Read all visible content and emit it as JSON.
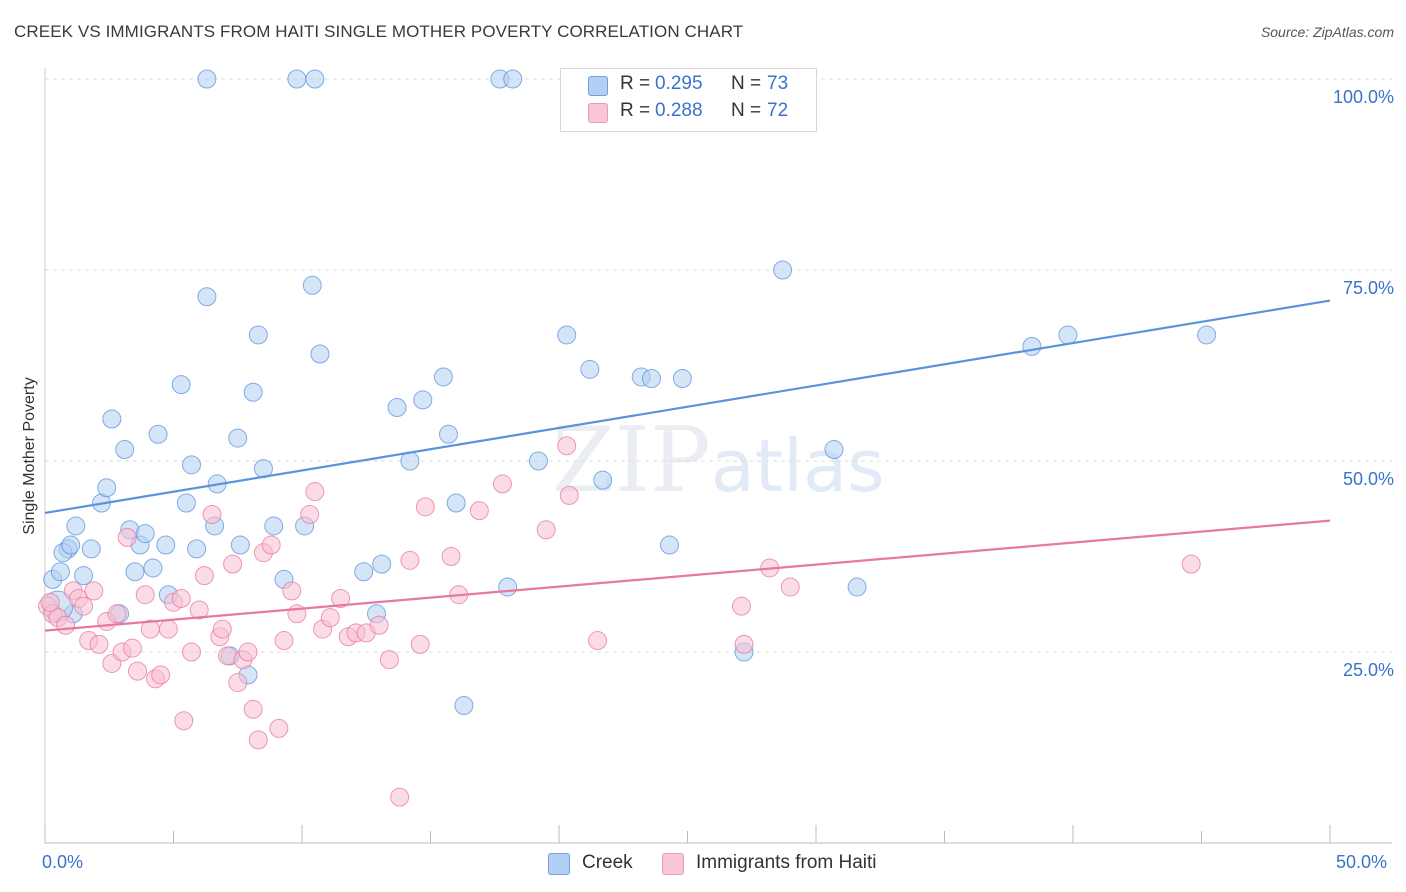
{
  "header": {
    "title": "CREEK VS IMMIGRANTS FROM HAITI SINGLE MOTHER POVERTY CORRELATION CHART",
    "source": "Source: ZipAtlas.com"
  },
  "watermark": {
    "zip": "ZIP",
    "atlas": "atlas"
  },
  "legend": {
    "r_label": "R =",
    "n_label": "N =",
    "items": [
      {
        "name": "Creek",
        "r": "0.295",
        "n": "73",
        "color": "#a9c8f0"
      },
      {
        "name": "Immigrants from Haiti",
        "r": "0.288",
        "n": "72",
        "color": "#f7b9cb"
      }
    ]
  },
  "axes": {
    "ylabel": "Single Mother Poverty",
    "y_ticks": [
      "100.0%",
      "75.0%",
      "50.0%",
      "25.0%"
    ],
    "x_min_label": "0.0%",
    "x_max_label": "50.0%"
  },
  "chart_data": {
    "type": "scatter",
    "title": "CREEK VS IMMIGRANTS FROM HAITI SINGLE MOTHER POVERTY CORRELATION CHART",
    "xlabel": "",
    "ylabel": "Single Mother Poverty",
    "xlim": [
      0,
      50
    ],
    "ylim": [
      0,
      102
    ],
    "grid": true,
    "series": [
      {
        "name": "Creek",
        "color": "#5b93db",
        "fill": "#b3cff2",
        "trend": {
          "x": [
            0,
            50
          ],
          "y": [
            43.2,
            71.0
          ]
        },
        "points": [
          [
            0.3,
            34.5
          ],
          [
            0.6,
            35.5
          ],
          [
            0.9,
            38.5
          ],
          [
            1.2,
            41.5
          ],
          [
            1.5,
            35
          ],
          [
            1.8,
            38.5
          ],
          [
            2.2,
            44.5
          ],
          [
            2.4,
            46.5
          ],
          [
            2.6,
            55.5
          ],
          [
            3.1,
            51.5
          ],
          [
            3.3,
            41
          ],
          [
            3.5,
            35.5
          ],
          [
            3.7,
            39
          ],
          [
            3.9,
            40.5
          ],
          [
            4.2,
            36
          ],
          [
            4.4,
            53.5
          ],
          [
            4.7,
            39
          ],
          [
            4.8,
            32.5
          ],
          [
            5.3,
            60
          ],
          [
            5.5,
            44.5
          ],
          [
            5.7,
            49.5
          ],
          [
            5.9,
            38.5
          ],
          [
            6.3,
            71.5
          ],
          [
            6.6,
            41.5
          ],
          [
            6.7,
            47
          ],
          [
            7.2,
            24.5
          ],
          [
            7.5,
            53
          ],
          [
            7.6,
            39
          ],
          [
            7.9,
            22
          ],
          [
            8.1,
            59
          ],
          [
            8.3,
            66.5
          ],
          [
            8.5,
            49
          ],
          [
            8.9,
            41.5
          ],
          [
            9.3,
            34.5
          ],
          [
            10.1,
            41.5
          ],
          [
            10.4,
            73
          ],
          [
            10.7,
            64
          ],
          [
            12.4,
            35.5
          ],
          [
            12.9,
            30
          ],
          [
            13.1,
            36.5
          ],
          [
            13.7,
            57
          ],
          [
            14.2,
            50
          ],
          [
            14.7,
            58
          ],
          [
            15.5,
            61
          ],
          [
            15.7,
            53.5
          ],
          [
            16,
            44.5
          ],
          [
            16.3,
            18
          ],
          [
            18,
            33.5
          ],
          [
            19.2,
            50
          ],
          [
            20.3,
            66.5
          ],
          [
            21.2,
            62
          ],
          [
            21.7,
            47.5
          ],
          [
            23.2,
            61
          ],
          [
            23.6,
            60.8
          ],
          [
            24.8,
            60.8
          ],
          [
            24.3,
            39
          ],
          [
            27.2,
            25
          ],
          [
            28.7,
            75
          ],
          [
            30.7,
            51.5
          ],
          [
            31.6,
            33.5
          ],
          [
            38.4,
            65
          ],
          [
            39.8,
            66.5
          ],
          [
            45.2,
            66.5
          ],
          [
            6.3,
            100
          ],
          [
            9.8,
            100
          ],
          [
            10.5,
            100
          ],
          [
            17.7,
            100
          ],
          [
            18.2,
            100
          ],
          [
            1.1,
            30
          ],
          [
            2.9,
            30
          ],
          [
            0.7,
            38
          ],
          [
            1,
            39
          ],
          [
            0.5,
            31
          ]
        ]
      },
      {
        "name": "Immigrants from Haiti",
        "color": "#e8789f",
        "fill": "#f8bfd1",
        "trend": {
          "x": [
            0,
            50
          ],
          "y": [
            27.8,
            42.2
          ]
        },
        "points": [
          [
            0.1,
            31
          ],
          [
            0.3,
            30
          ],
          [
            0.5,
            29.5
          ],
          [
            0.8,
            28.5
          ],
          [
            1.1,
            33
          ],
          [
            1.3,
            32
          ],
          [
            1.5,
            31
          ],
          [
            1.7,
            26.5
          ],
          [
            1.9,
            33
          ],
          [
            2.1,
            26
          ],
          [
            2.4,
            29
          ],
          [
            2.6,
            23.5
          ],
          [
            2.8,
            30
          ],
          [
            3,
            25
          ],
          [
            3.2,
            40
          ],
          [
            3.4,
            25.5
          ],
          [
            3.6,
            22.5
          ],
          [
            3.9,
            32.5
          ],
          [
            4.1,
            28
          ],
          [
            4.3,
            21.5
          ],
          [
            4.5,
            22
          ],
          [
            4.8,
            28
          ],
          [
            5,
            31.5
          ],
          [
            5.3,
            32
          ],
          [
            5.4,
            16
          ],
          [
            5.7,
            25
          ],
          [
            6,
            30.5
          ],
          [
            6.2,
            35
          ],
          [
            6.5,
            43
          ],
          [
            6.8,
            27
          ],
          [
            6.9,
            28
          ],
          [
            7.1,
            24.5
          ],
          [
            7.3,
            36.5
          ],
          [
            7.5,
            21
          ],
          [
            7.7,
            24
          ],
          [
            7.9,
            25
          ],
          [
            8.1,
            17.5
          ],
          [
            8.3,
            13.5
          ],
          [
            8.5,
            38
          ],
          [
            8.8,
            39
          ],
          [
            9.1,
            15
          ],
          [
            9.3,
            26.5
          ],
          [
            9.6,
            33
          ],
          [
            9.8,
            30
          ],
          [
            10.3,
            43
          ],
          [
            10.5,
            46
          ],
          [
            10.8,
            28
          ],
          [
            11.1,
            29.5
          ],
          [
            11.5,
            32
          ],
          [
            11.8,
            27
          ],
          [
            12.1,
            27.5
          ],
          [
            12.5,
            27.5
          ],
          [
            13,
            28.5
          ],
          [
            13.4,
            24
          ],
          [
            13.8,
            6
          ],
          [
            14.2,
            37
          ],
          [
            14.6,
            26
          ],
          [
            14.8,
            44
          ],
          [
            15.8,
            37.5
          ],
          [
            16.1,
            32.5
          ],
          [
            16.9,
            43.5
          ],
          [
            17.8,
            47
          ],
          [
            19.5,
            41
          ],
          [
            20.3,
            52
          ],
          [
            20.4,
            45.5
          ],
          [
            21.5,
            26.5
          ],
          [
            27.1,
            31
          ],
          [
            27.2,
            26
          ],
          [
            28.2,
            36
          ],
          [
            29,
            33.5
          ],
          [
            44.6,
            36.5
          ],
          [
            0.2,
            31.5
          ]
        ]
      }
    ]
  }
}
